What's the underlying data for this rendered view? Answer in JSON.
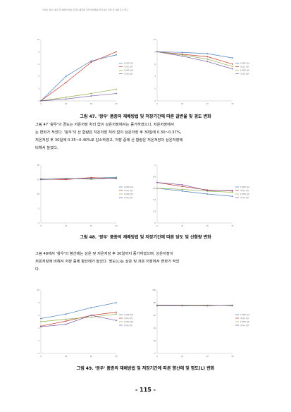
{
  "header": {
    "text": "국내산 '왕이' 봉지 및 재배적 대상 조합의 품질제 거래 안정화를 위한 상온 저장 및 유통 조건 연구"
  },
  "colors": [
    "#4a7fc1",
    "#c0392b",
    "#8db04a",
    "#7a5aa8",
    "#2aa7b8",
    "#e08a2e"
  ],
  "figures": [
    {
      "caption": "그림 47. '왕우' 품종의 재배방법 및 저장기간에 따른 갈변율 및 경도 변화",
      "charts": [
        {
          "type": "line",
          "x": [
            "0",
            "10",
            "20",
            "30"
          ],
          "ylim": [
            0,
            10
          ],
          "yticks": [
            "0",
            "2",
            "4",
            "6",
            "8",
            "10"
          ],
          "ylabel": "",
          "legend": [
            "1-MCP 처리",
            "무처리 저온",
            "1-MCP 상온",
            "무처리 상온"
          ],
          "series": [
            {
              "name": "1-MCP 처리",
              "values": [
                0,
                4.0,
                6.5,
                7.5
              ]
            },
            {
              "name": "무처리 저온",
              "values": [
                0,
                3.0,
                6.3,
                8.0
              ]
            },
            {
              "name": "1-MCP 상온",
              "values": [
                0,
                0.6,
                1.2,
                1.9
              ]
            },
            {
              "name": "무처리 상온",
              "values": [
                0,
                0.3,
                0.8,
                1.2
              ]
            }
          ]
        },
        {
          "type": "line",
          "x": [
            "0",
            "10",
            "20",
            "30"
          ],
          "ylim": [
            0,
            10
          ],
          "yticks": [
            "0",
            "2",
            "4",
            "6",
            "8",
            "10"
          ],
          "ylabel": "",
          "legend": [
            "1-MCP 처리",
            "무처리 저온",
            "1-MCP 상온",
            "무처리 상온"
          ],
          "series": [
            {
              "name": "1-MCP 처리",
              "values": [
                8.0,
                7.9,
                7.7,
                7.0
              ]
            },
            {
              "name": "무처리 저온",
              "values": [
                8.0,
                7.6,
                7.2,
                6.0
              ]
            },
            {
              "name": "1-MCP 상온",
              "values": [
                8.0,
                7.5,
                6.8,
                5.6
              ]
            },
            {
              "name": "무처리 상온",
              "values": [
                8.0,
                7.3,
                6.4,
                5.2
              ]
            }
          ]
        }
      ]
    },
    {
      "caption": "그림 48. '왕우' 품종의 재배방법 및 저장기간에 따른 당도 및 산함량 변화",
      "charts": [
        {
          "type": "line",
          "x": [
            "0",
            "10",
            "20",
            "30"
          ],
          "ylim": [
            0,
            20
          ],
          "yticks": [
            "0",
            "5",
            "10",
            "15",
            "20"
          ],
          "ylabel": "",
          "legend": [
            "1-MCP 처리",
            "무처리 저온",
            "1-MCP 상온",
            "무처리 상온"
          ],
          "series": [
            {
              "name": "1-MCP 처리",
              "values": [
                15.0,
                15.2,
                15.5,
                15.8
              ]
            },
            {
              "name": "무처리 저온",
              "values": [
                15.2,
                15.0,
                15.7,
                15.3
              ]
            },
            {
              "name": "1-MCP 상온",
              "values": [
                15.0,
                15.4,
                15.1,
                15.6
              ]
            },
            {
              "name": "무처리 상온",
              "values": [
                15.1,
                15.3,
                15.2,
                15.4
              ]
            }
          ]
        },
        {
          "type": "line",
          "x": [
            "0",
            "10",
            "20",
            "30"
          ],
          "ylim": [
            0,
            1
          ],
          "yticks": [
            "0",
            "0.2",
            "0.4",
            "0.6",
            "0.8",
            "1"
          ],
          "ylabel": "",
          "legend": [
            "1-MCP 처리",
            "무처리 저온",
            "1-MCP 상온",
            "무처리 상온"
          ],
          "series": [
            {
              "name": "1-MCP 처리",
              "values": [
                0.6,
                0.55,
                0.5,
                0.46
              ]
            },
            {
              "name": "무처리 저온",
              "values": [
                0.7,
                0.63,
                0.57,
                0.55
              ]
            },
            {
              "name": "1-MCP 상온",
              "values": [
                0.6,
                0.58,
                0.55,
                0.53
              ]
            },
            {
              "name": "무처리 상온",
              "values": [
                0.7,
                0.66,
                0.56,
                0.56
              ]
            }
          ]
        }
      ]
    },
    {
      "caption": "그림 49. '왕우' 품종의 재배방법 및 저장기간에 따른 향산에 및 명도(L) 변화",
      "charts": [
        {
          "type": "line",
          "x": [
            "0",
            "10",
            "20",
            "30"
          ],
          "ylim": [
            0,
            10
          ],
          "yticks": [
            "0",
            "2",
            "4",
            "6",
            "8",
            "10"
          ],
          "ylabel": "",
          "legend": [
            "1-MCP 처리",
            "무처리 저온",
            "1-MCP 상온",
            "무처리 상온"
          ],
          "series": [
            {
              "name": "1-MCP 처리",
              "values": [
                5.5,
                6.2,
                7.2,
                8.0
              ]
            },
            {
              "name": "무처리 저온",
              "values": [
                4.3,
                5.1,
                6.0,
                6.5
              ]
            },
            {
              "name": "1-MCP 상온",
              "values": [
                5.0,
                5.4,
                5.7,
                6.2
              ]
            },
            {
              "name": "무처리 상온",
              "values": [
                4.2,
                4.6,
                6.0,
                5.2
              ]
            }
          ]
        },
        {
          "type": "line",
          "x": [
            "0",
            "10",
            "20",
            "30"
          ],
          "ylim": [
            0,
            100
          ],
          "yticks": [
            "0",
            "20",
            "40",
            "60",
            "80",
            "100"
          ],
          "ylabel": "",
          "legend": [
            "1-MCP 처리",
            "무처리 저온",
            "1-MCP 상온",
            "무처리 상온"
          ],
          "series": [
            {
              "name": "1-MCP 처리",
              "values": [
                75,
                75,
                76,
                75
              ]
            },
            {
              "name": "무처리 저온",
              "values": [
                76,
                76,
                75,
                76
              ]
            },
            {
              "name": "1-MCP 상온",
              "values": [
                75,
                76,
                76,
                75
              ]
            },
            {
              "name": "무처리 상온",
              "values": [
                76,
                75,
                75,
                76
              ]
            }
          ]
        }
      ]
    }
  ],
  "paragraphs": [
    {
      "lines": [
        "그림 47 '왕우'의 경도는 저온저장 처리 없이 상온저장에서는 증가하였으나, 저온저장에서",
        "는 변화가 적었다. '왕우'의 산 함량은 저온저장 처리 없이 상온저장 후 30일에 0.30~0.37%,",
        "저온저장 후 30일에 0.35~0.40%로 감소하였고, 저장 중에 산 함량은 저온저장이 상온저장에",
        "비해서 높았다."
      ]
    },
    {
      "lines": [
        "그림 48에서 '왕우'의 향산에는 상온 및 저온저장 후 30일까지 증가하였으며, 상온저장이",
        "저온저장에 비해서 저장 중에 향산에가 높았다. 명도(L)는 상온 및 저온 저장에서 변화가 적었",
        "다."
      ]
    }
  ],
  "page_number": "- 115 -"
}
